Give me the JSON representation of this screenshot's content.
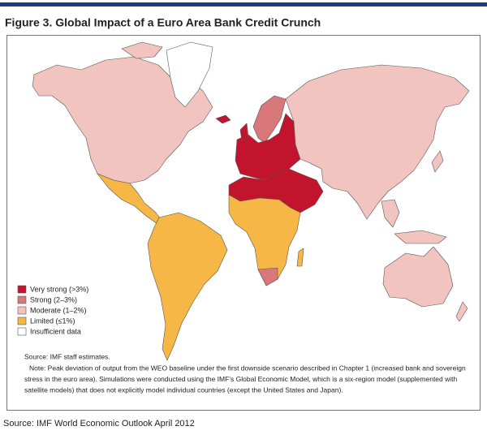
{
  "header": {
    "title": "Figure 3. Global Impact of a Euro Area Bank Credit Crunch"
  },
  "legend": {
    "items": [
      {
        "label": "Very strong (>3%)",
        "color": "#c3142d"
      },
      {
        "label": "Strong (2–3%)",
        "color": "#d9787a"
      },
      {
        "label": "Moderate (1–2%)",
        "color": "#f1c4bf"
      },
      {
        "label": "Limited (≤1%)",
        "color": "#f6b746"
      },
      {
        "label": "Insufficient data",
        "color": "#ffffff"
      }
    ]
  },
  "source": "Source: IMF staff estimates.",
  "note": [
    "Note: Peak deviation of output from the WEO baseline under the first downside scenario described in Chapter 1 (increased bank and sovereign",
    "stress in the euro area). Simulations were conducted using the IMF’s Global Economic Model, which is a six-region model (supplemented with",
    "satellite models) that does not explicitly model individual countries (except the United States and Japan)."
  ],
  "footer": "Source: IMF World Economic Outlook April 2012"
}
